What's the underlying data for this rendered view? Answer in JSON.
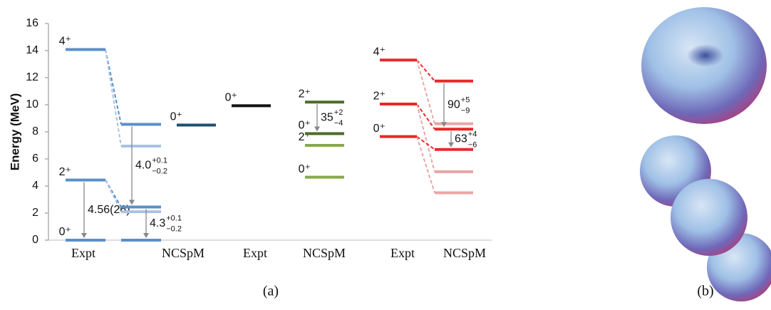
{
  "chart_data": {
    "type": "level",
    "ylabel": "Energy (MeV)",
    "ylim": [
      0,
      16
    ],
    "yticks": [
      0,
      2,
      4,
      6,
      8,
      10,
      12,
      14,
      16
    ],
    "columns": [
      {
        "name": "Expt",
        "levels": [
          {
            "energy": 0,
            "label": "0⁺",
            "color": "#5b8fc9"
          },
          {
            "energy": 4.44,
            "label": "2⁺",
            "color": "#5b8fc9"
          },
          {
            "energy": 14.08,
            "label": "4⁺",
            "color": "#5b8fc9"
          }
        ],
        "transitions": [
          {
            "from": 1,
            "to": 0,
            "text": "4.56(26)"
          }
        ]
      },
      {
        "levels": [
          {
            "energy": 0,
            "color": "#5b8fc9"
          },
          {
            "energy": 2.1,
            "color": "#a9c3e4"
          },
          {
            "energy": 2.45,
            "color": "#5b8fc9"
          },
          {
            "energy": 6.95,
            "color": "#a9c3e4"
          },
          {
            "energy": 8.55,
            "color": "#5b8fc9"
          }
        ],
        "transitions": [
          {
            "from": 4,
            "to": 2,
            "text": "4.0",
            "plus": "+0.1",
            "minus": "−0.2"
          },
          {
            "from": 2,
            "to": 0,
            "text": "4.3",
            "plus": "+0.1",
            "minus": "−0.2"
          }
        ]
      },
      {
        "name": "NCSpM",
        "levels": [
          {
            "energy": 8.5,
            "label": "0⁺",
            "color": "#1f4e6e"
          }
        ]
      },
      {
        "name": "Expt",
        "levels": [
          {
            "energy": 9.93,
            "label": "0⁺",
            "color": "#111111"
          }
        ]
      },
      {
        "name": "NCSpM",
        "levels": [
          {
            "energy": 4.65,
            "label": "0⁺",
            "color": "#8aa94a"
          },
          {
            "energy": 7.0,
            "label": "2⁺",
            "color": "#8aa94a"
          },
          {
            "energy": 7.87,
            "label": "0⁺",
            "color": "#4f6b2a"
          },
          {
            "energy": 10.2,
            "label": "2⁺",
            "color": "#4f6b2a"
          }
        ],
        "transitions": [
          {
            "from": 3,
            "to": 2,
            "text": "35",
            "plus": "+2",
            "minus": "−4"
          }
        ]
      },
      {
        "name": "Expt",
        "levels": [
          {
            "energy": 7.65,
            "label": "0⁺",
            "color": "#e8282a"
          },
          {
            "energy": 10.05,
            "label": "2⁺",
            "color": "#e8282a"
          },
          {
            "energy": 13.3,
            "label": "4⁺",
            "color": "#e8282a"
          }
        ]
      },
      {
        "name": "NCSpM",
        "levels": [
          {
            "energy": 3.5,
            "color": "#eaa6a6"
          },
          {
            "energy": 5.05,
            "color": "#eaa6a6"
          },
          {
            "energy": 6.7,
            "color": "#e8282a"
          },
          {
            "energy": 8.2,
            "color": "#e8282a"
          },
          {
            "energy": 8.6,
            "color": "#eaa6a6"
          },
          {
            "energy": 11.75,
            "color": "#e8282a"
          }
        ],
        "transitions": [
          {
            "from": 5,
            "to": 3,
            "text": "90",
            "plus": "+5",
            "minus": "−9"
          },
          {
            "from": 3,
            "to": 2,
            "text": "63",
            "plus": "+4",
            "minus": "−6"
          }
        ]
      }
    ],
    "panel_labels": [
      "(a)",
      "(b)"
    ]
  }
}
